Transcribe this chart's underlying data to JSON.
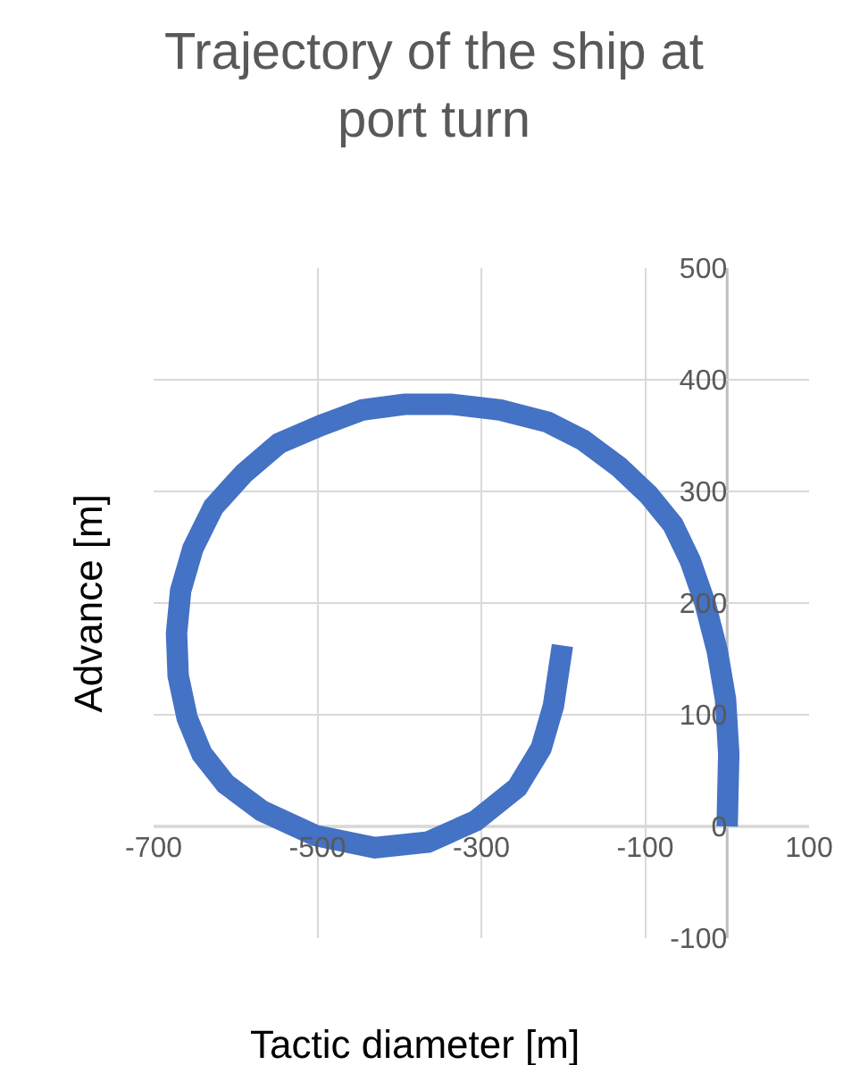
{
  "chart_data": {
    "type": "line",
    "title": "Trajectory of the ship at port turn",
    "xlabel": "Tactic diameter [m]",
    "ylabel": "Advance [m]",
    "x": [
      0,
      2,
      -2,
      -12,
      -27,
      -45,
      -66,
      -96,
      -132,
      -176,
      -219,
      -277,
      -336,
      -394,
      -445,
      -496,
      -547,
      -590,
      -627,
      -652,
      -667,
      -672,
      -670,
      -659,
      -641,
      -612,
      -568,
      -503,
      -430,
      -365,
      -307,
      -256,
      -227,
      -212,
      -201
    ],
    "series": [
      {
        "color": "#4472c4",
        "values": [
          0,
          65,
          114,
          157,
          200,
          238,
          270,
          297,
          322,
          346,
          362,
          373,
          378,
          378,
          373,
          359,
          343,
          316,
          286,
          249,
          211,
          173,
          135,
          97,
          65,
          38,
          14,
          -8,
          -19,
          -14,
          5,
          35,
          70,
          108,
          162
        ]
      }
    ],
    "xlim": [
      -700,
      100
    ],
    "xticks": [
      -700,
      -500,
      -300,
      -100,
      100
    ],
    "ylim": [
      -100,
      500
    ],
    "yticks": [
      -100,
      0,
      100,
      200,
      300,
      400,
      500
    ],
    "grid": true,
    "marker": "none",
    "line_style": "solid"
  }
}
